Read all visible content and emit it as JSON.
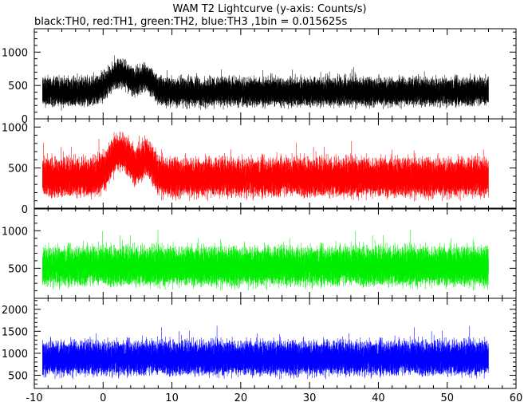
{
  "title": "WAM T2 Lightcurve (y-axis: Counts/s)",
  "subtitle": "black:TH0, red:TH1, green:TH2, blue:TH3 ,1bin = 0.015625s",
  "chart_data": {
    "type": "line",
    "title": "WAM T2 Lightcurve (y-axis: Counts/s)",
    "subtitle": "black:TH0, red:TH1, green:TH2, blue:TH3 ,1bin = 0.015625s",
    "xlabel": "",
    "ylabel": "Counts/s",
    "xlim": [
      -10,
      60
    ],
    "x_ticks": [
      -10,
      0,
      10,
      20,
      30,
      40,
      50,
      60
    ],
    "x_data_range": [
      -8.8,
      56
    ],
    "bin_seconds": 0.015625,
    "grid": false,
    "legend": "none",
    "panels": [
      {
        "name": "TH0",
        "color": "#000000",
        "ylim": [
          0,
          1350
        ],
        "y_ticks": [
          0,
          500,
          1000
        ],
        "baseline": 400,
        "band": 130,
        "peaks": [
          {
            "x": 2.5,
            "amp": 280,
            "width": 2.2
          },
          {
            "x": 6.2,
            "amp": 200,
            "width": 1.3
          }
        ]
      },
      {
        "name": "TH1",
        "color": "#ff0000",
        "ylim": [
          0,
          1100
        ],
        "y_ticks": [
          0,
          500,
          1000
        ],
        "baseline": 380,
        "band": 145,
        "peaks": [
          {
            "x": 2.5,
            "amp": 320,
            "width": 2.0
          },
          {
            "x": 6.3,
            "amp": 230,
            "width": 1.3
          }
        ]
      },
      {
        "name": "TH2",
        "color": "#00ee00",
        "ylim": [
          100,
          1300
        ],
        "y_ticks": [
          500,
          1000
        ],
        "baseline": 520,
        "band": 160,
        "peaks": []
      },
      {
        "name": "TH3",
        "color": "#0000ff",
        "ylim": [
          200,
          2250
        ],
        "y_ticks": [
          500,
          1000,
          1500,
          2000
        ],
        "baseline": 880,
        "band": 240,
        "peaks": []
      }
    ]
  }
}
